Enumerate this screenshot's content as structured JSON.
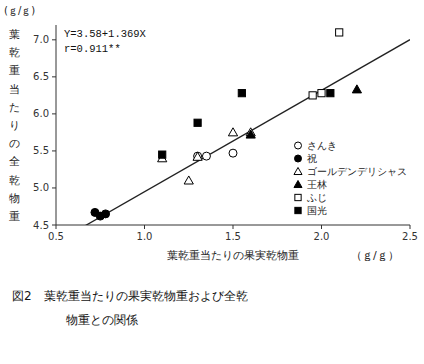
{
  "chart_data": {
    "type": "scatter",
    "caption": [
      "図2　葉乾重当たりの果実乾物重および全乾",
      "物重との関係"
    ],
    "x_label": "葉乾重当たりの果実乾物重",
    "x_label_unit": "（ｇ/ｇ）",
    "y_label": "葉乾重当たりの全乾物重",
    "y_label_unit": "(ｇ/ｇ)",
    "annotations": [
      "Y=3.58+1.369X",
      "r=0.911**"
    ],
    "regression": {
      "intercept": 3.58,
      "slope": 1.369
    },
    "xlim": [
      0.5,
      2.5
    ],
    "ylim": [
      4.5,
      7.2
    ],
    "xticks": [
      0.5,
      {
        "value": 1.0,
        "label": "1.0"
      },
      1.5,
      {
        "value": 2.0,
        "label": "2.0"
      },
      2.5
    ],
    "yticks": [
      4.5,
      {
        "value": 5.0,
        "label": "5.0"
      },
      5.5,
      {
        "value": 6.0,
        "label": "6.0"
      },
      6.5,
      {
        "value": 7.0,
        "label": "7.0"
      }
    ],
    "grid": false,
    "legend": "lower-right",
    "series": [
      {
        "name": "さんき",
        "marker": "open-circle",
        "color": "black",
        "x": [
          1.3,
          1.35,
          1.5
        ],
        "values": [
          5.43,
          5.43,
          5.47
        ]
      },
      {
        "name": "祝",
        "marker": "filled-circle",
        "color": "black",
        "x": [
          0.72,
          0.75,
          0.78
        ],
        "values": [
          4.67,
          4.62,
          4.65
        ]
      },
      {
        "name": "ゴールデンデリシャス",
        "marker": "open-triangle",
        "color": "black",
        "x": [
          1.1,
          1.25,
          1.3,
          1.5,
          1.6
        ],
        "values": [
          5.4,
          5.1,
          5.42,
          5.75,
          5.75
        ]
      },
      {
        "name": "王林",
        "marker": "filled-triangle",
        "color": "black",
        "x": [
          1.6,
          2.2
        ],
        "values": [
          5.72,
          6.33
        ]
      },
      {
        "name": "ふじ",
        "marker": "open-square",
        "color": "black",
        "x": [
          1.95,
          2.0,
          2.1
        ],
        "values": [
          6.25,
          6.28,
          7.1
        ]
      },
      {
        "name": "国光",
        "marker": "filled-square",
        "color": "black",
        "x": [
          1.1,
          1.3,
          1.55,
          2.05
        ],
        "values": [
          5.45,
          5.88,
          6.28,
          6.28
        ]
      }
    ]
  }
}
